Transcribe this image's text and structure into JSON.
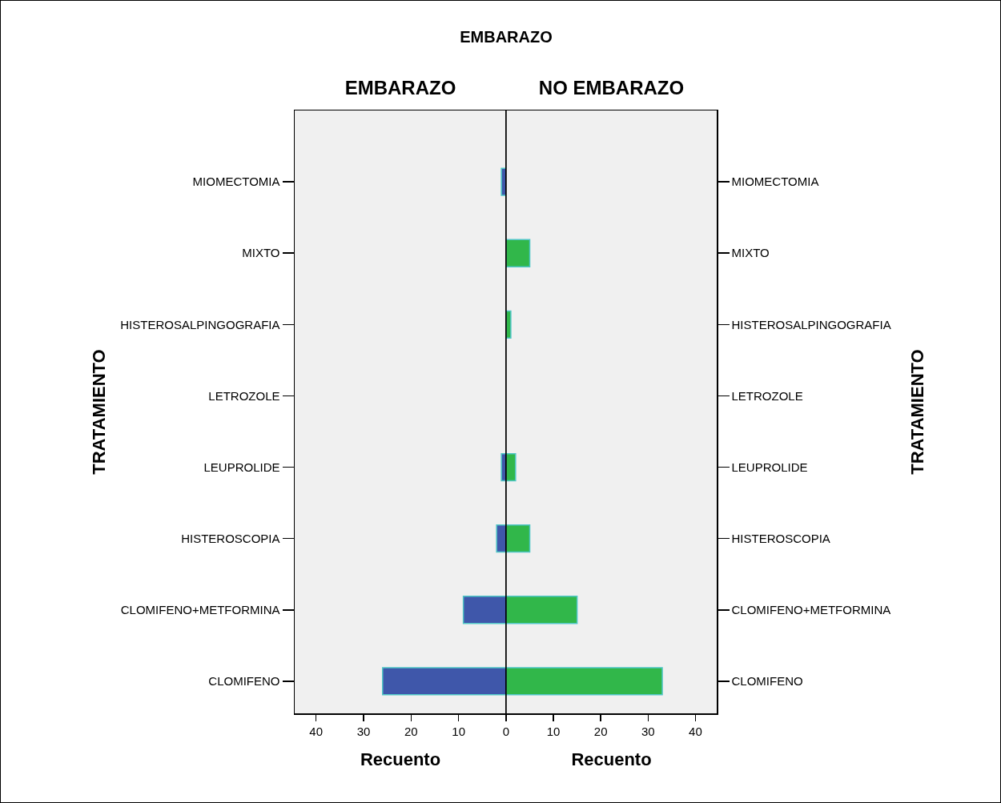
{
  "chart_data": [
    {
      "type": "bar",
      "orientation": "horizontal",
      "title": "EMBARAZO",
      "subtitle": "EMBARAZO",
      "xlabel": "Recuento",
      "ylabel": "TRATAMIENTO",
      "categories": [
        "MIOMECTOMIA",
        "MIXTO",
        "HISTEROSALPINGOGRAFIA",
        "LETROZOLE",
        "LEUPROLIDE",
        "HISTEROSCOPIA",
        "CLOMIFENO+METFORMINA",
        "CLOMIFENO"
      ],
      "values": [
        1,
        0,
        0,
        0,
        1,
        2,
        9,
        26
      ],
      "color": "#3f57aa",
      "xlim": [
        44.5,
        0
      ],
      "xticks": [
        40,
        30,
        20,
        10,
        {
          "value": 0,
          "label": null
        }
      ]
    },
    {
      "type": "bar",
      "orientation": "horizontal",
      "subtitle": "NO EMBARAZO",
      "xlabel": "Recuento",
      "ylabel": "TRATAMIENTO",
      "categories": [
        "MIOMECTOMIA",
        "MIXTO",
        "HISTEROSALPINGOGRAFIA",
        "LETROZOLE",
        "LEUPROLIDE",
        "HISTEROSCOPIA",
        "CLOMIFENO+METFORMINA",
        "CLOMIFENO"
      ],
      "values": [
        0,
        5,
        1,
        0,
        2,
        5,
        15,
        33
      ],
      "color": "#31b74a",
      "xlim": [
        0,
        44.5
      ],
      "xticks": [
        0,
        10,
        20,
        30,
        40
      ]
    }
  ]
}
